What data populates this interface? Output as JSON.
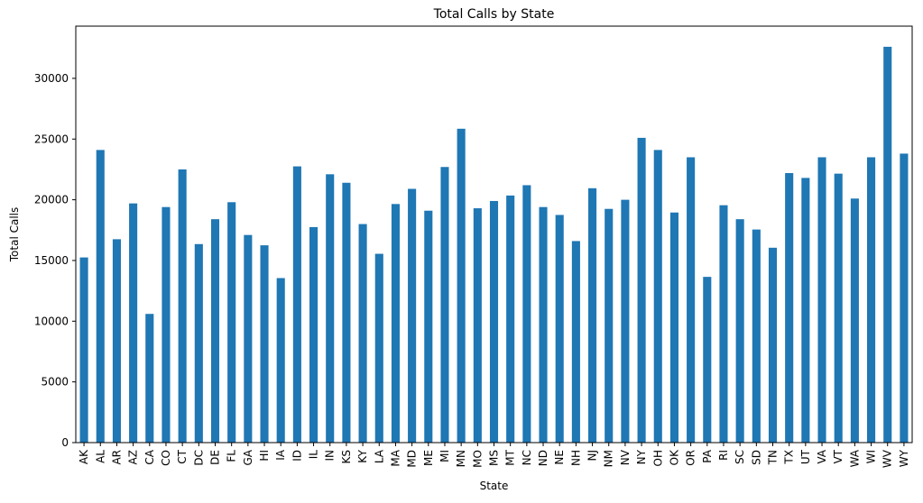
{
  "chart_data": {
    "type": "bar",
    "title": "Total Calls by State",
    "xlabel": "State",
    "ylabel": "Total Calls",
    "ylim": [
      0,
      34300
    ],
    "y_ticks": [
      0,
      5000,
      10000,
      15000,
      20000,
      25000,
      30000
    ],
    "grid": false,
    "legend": "none",
    "bar_color": "#1f77b4",
    "categories": [
      "AK",
      "AL",
      "AR",
      "AZ",
      "CA",
      "CO",
      "CT",
      "DC",
      "DE",
      "FL",
      "GA",
      "HI",
      "IA",
      "ID",
      "IL",
      "IN",
      "KS",
      "KY",
      "LA",
      "MA",
      "MD",
      "ME",
      "MI",
      "MN",
      "MO",
      "MS",
      "MT",
      "NC",
      "ND",
      "NE",
      "NH",
      "NJ",
      "NM",
      "NV",
      "NY",
      "OH",
      "OK",
      "OR",
      "PA",
      "RI",
      "SC",
      "SD",
      "TN",
      "TX",
      "UT",
      "VA",
      "VT",
      "WA",
      "WI",
      "WV",
      "WY"
    ],
    "values": [
      15250,
      24100,
      16750,
      19700,
      10600,
      19400,
      22500,
      16350,
      18400,
      19800,
      17100,
      16250,
      13550,
      22750,
      17750,
      22100,
      21400,
      18000,
      15550,
      19650,
      20900,
      19100,
      22700,
      25850,
      19300,
      19900,
      20350,
      21200,
      19400,
      18750,
      16600,
      20950,
      19250,
      20000,
      25100,
      24100,
      18950,
      23500,
      13650,
      19550,
      18400,
      17550,
      16050,
      22200,
      21800,
      23500,
      22150,
      20100,
      23500,
      32600,
      23800
    ]
  }
}
